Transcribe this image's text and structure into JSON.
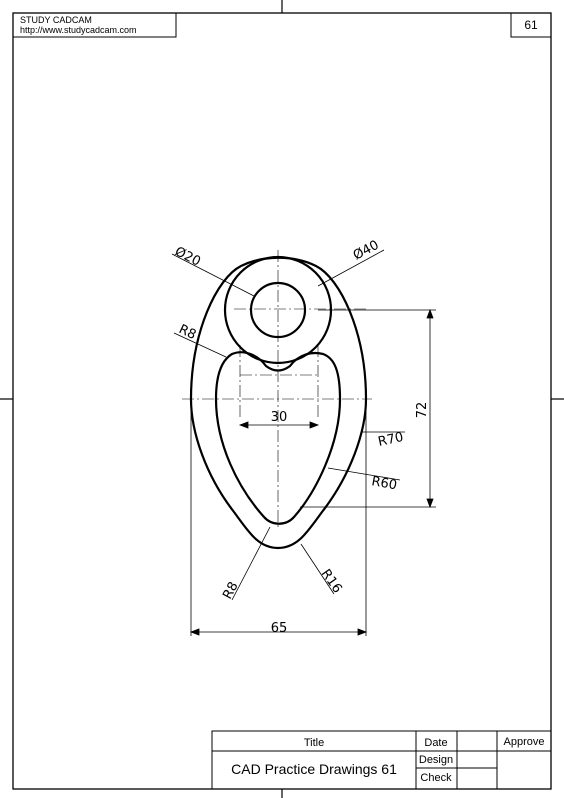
{
  "header": {
    "brand": "STUDY CADCAM",
    "url": "http://www.studycadcam.com",
    "sheet_number": "61"
  },
  "dimensions": {
    "dia_small": "Ø20",
    "dia_large": "Ø40",
    "r8_top": "R8",
    "width_30": "30",
    "height_72": "72",
    "r70": "R70",
    "r60": "R60",
    "r8_bottom": "R8",
    "r16": "R16",
    "width_65": "65"
  },
  "title_block": {
    "title_label": "Title",
    "date_label": "Date",
    "approve_label": "Approve",
    "design_label": "Design",
    "check_label": "Check",
    "drawing_title": "CAD Practice Drawings 61"
  }
}
